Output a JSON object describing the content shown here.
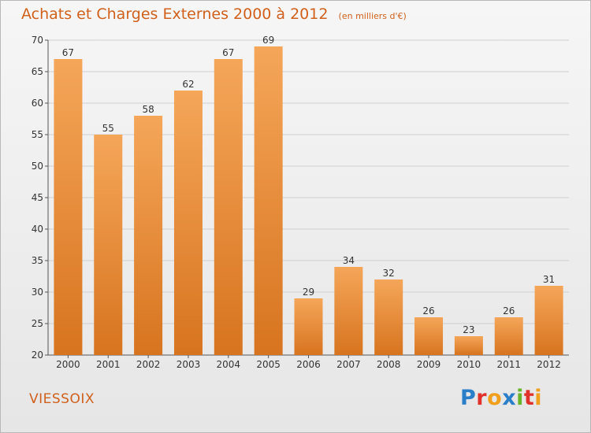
{
  "title": {
    "main": "Achats et Charges Externes 2000 à 2012",
    "sub": "(en milliers d'€)"
  },
  "commune": "VIESSOIX",
  "brand": {
    "text": "Proxiti",
    "letters": [
      {
        "ch": "P",
        "color": "#2a7fc8"
      },
      {
        "ch": "r",
        "color": "#e0322b"
      },
      {
        "ch": "o",
        "color": "#f0a01c"
      },
      {
        "ch": "x",
        "color": "#2a7fc8"
      },
      {
        "ch": "i",
        "color": "#6ab42a"
      },
      {
        "ch": "t",
        "color": "#e0322b"
      },
      {
        "ch": "i",
        "color": "#f0a01c"
      }
    ]
  },
  "colors": {
    "bar_top": "#f5a659",
    "bar_bottom": "#d7741f",
    "text": "#d0601c",
    "axis_text": "#333333",
    "grid": "#cfcfcf"
  },
  "chart_data": {
    "type": "bar",
    "categories": [
      "2000",
      "2001",
      "2002",
      "2003",
      "2004",
      "2005",
      "2006",
      "2007",
      "2008",
      "2009",
      "2010",
      "2011",
      "2012"
    ],
    "values": [
      67,
      55,
      58,
      62,
      67,
      69,
      29,
      34,
      32,
      26,
      23,
      26,
      31
    ],
    "ylim": [
      20,
      70
    ],
    "yticks": [
      20,
      25,
      30,
      35,
      40,
      45,
      50,
      55,
      60,
      65,
      70
    ],
    "grid": true,
    "title": "Achats et Charges Externes 2000 à 2012",
    "ylabel": "",
    "xlabel": ""
  }
}
